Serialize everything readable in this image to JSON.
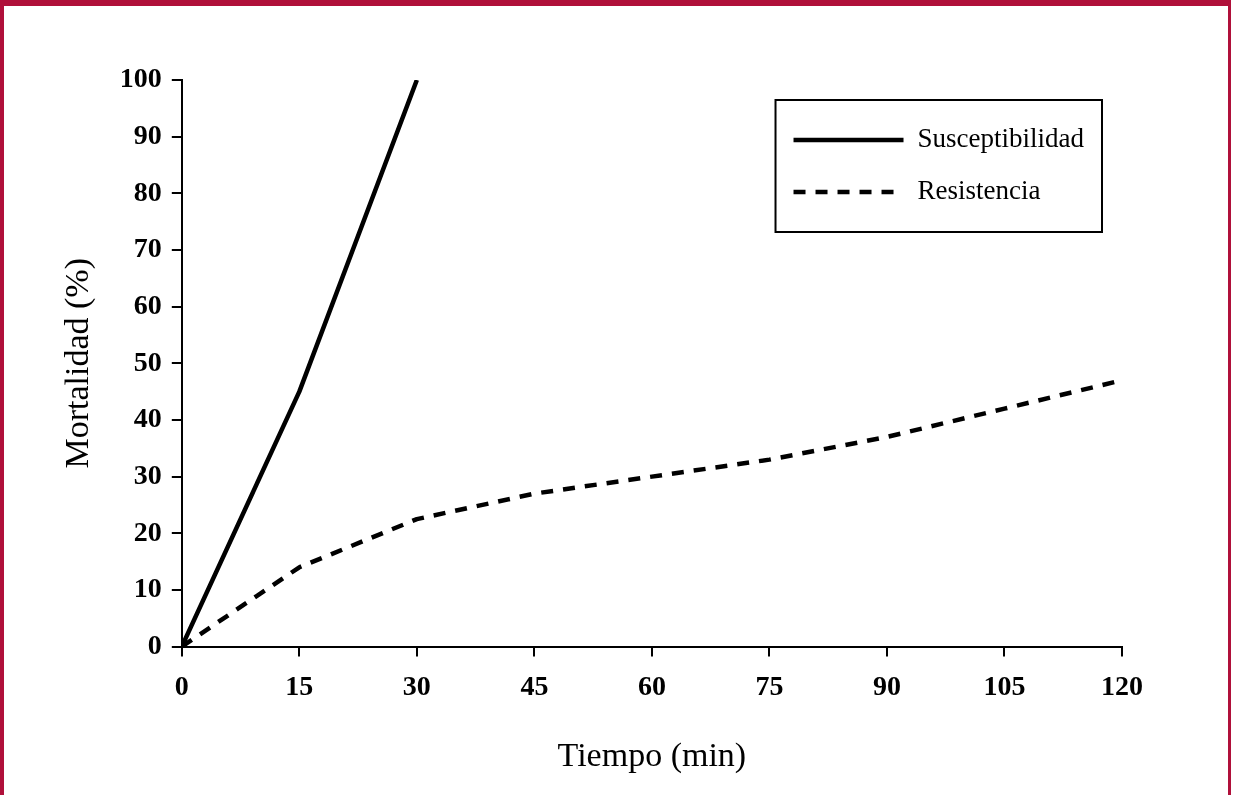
{
  "chart_data": {
    "type": "line",
    "xlabel": "Tiempo (min)",
    "ylabel": "Mortalidad (%)",
    "xlim": [
      0,
      120
    ],
    "xticks": [
      0,
      15,
      30,
      45,
      60,
      75,
      90,
      105,
      120
    ],
    "ylim": [
      0,
      100
    ],
    "yticks": [
      0,
      10,
      20,
      30,
      40,
      50,
      60,
      70,
      80,
      90,
      100
    ],
    "grid": false,
    "legend": "top right",
    "marker": "none",
    "series": [
      {
        "name": "Susceptibilidad",
        "color": "#000000",
        "line_style": "solid",
        "x": [
          0,
          15,
          30
        ],
        "values": [
          0,
          45,
          100
        ]
      },
      {
        "name": "Resistencia",
        "color": "#000000",
        "line_style": "dashed",
        "x": [
          0,
          15,
          30,
          45,
          60,
          75,
          90,
          105,
          120
        ],
        "values": [
          0,
          14,
          22.5,
          27,
          30,
          33,
          37,
          42,
          47
        ]
      }
    ]
  }
}
